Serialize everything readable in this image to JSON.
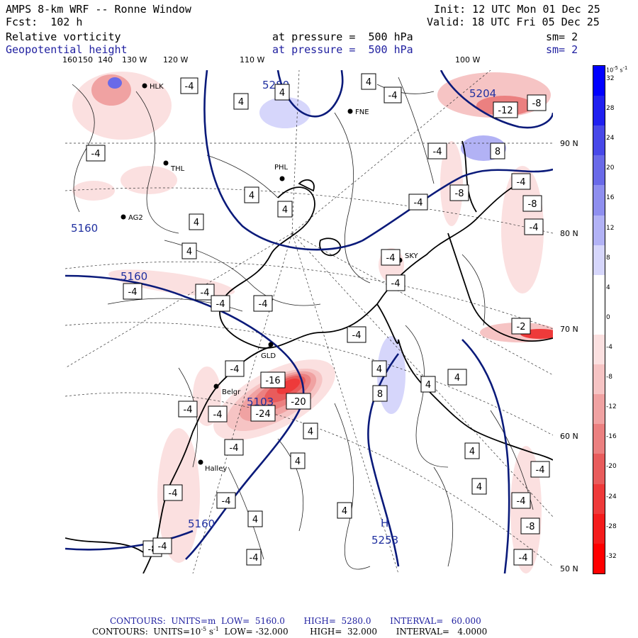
{
  "header": {
    "title": "AMPS 8-km WRF -- Ronne Window",
    "fcst": "Fcst:  102 h",
    "init": "Init: 12 UTC Mon 01 Dec 25",
    "valid": "Valid: 18 UTC Fri 05 Dec 25",
    "field1_name": "Relative vorticity",
    "field1_pressure": "at pressure =  500 hPa",
    "field1_sm": "sm= 2",
    "field2_name": "Geopotential height",
    "field2_pressure": "at pressure =  500 hPa",
    "field2_sm": "sm= 2"
  },
  "axes": {
    "longitudes": [
      "160",
      "150",
      "140",
      "130 W",
      "120 W",
      "110 W",
      "100 W"
    ],
    "latitudes": [
      "90 N",
      "80 N",
      "70 N",
      "60 N",
      "50 N"
    ]
  },
  "stations": [
    "HLK",
    "FNE",
    "THL",
    "PHL",
    "AG2",
    "SKY",
    "GLD",
    "Belgr",
    "Halley"
  ],
  "height_labels": [
    "5280",
    "5160",
    "5160",
    "5103",
    "5160",
    "5253",
    "5204"
  ],
  "high_marker": "H",
  "vorticity_labels": [
    "-4",
    "4",
    "-4",
    "4",
    "4",
    "-12",
    "-8",
    "-4",
    "8",
    "-4",
    "-8",
    "-4",
    "-8",
    "-4",
    "-4",
    "-4",
    "4",
    "4",
    "-4",
    "4",
    "4",
    "-4",
    "-4",
    "-4",
    "-4",
    "-4",
    "-16",
    "-20",
    "-24",
    "-4",
    "-4",
    "-4",
    "-4",
    "4",
    "8",
    "4",
    "4",
    "4",
    "4",
    "4",
    "4",
    "4",
    "-4",
    "-8",
    "-4",
    "-4",
    "-4",
    "-4",
    "4",
    "-8",
    "-4",
    "-4",
    "-2"
  ],
  "colorbar": {
    "unit": "10",
    "unit_exp": "-5",
    "unit_suffix": "s",
    "unit_suffix_exp": "-1",
    "ticks": [
      "32",
      "28",
      "24",
      "20",
      "16",
      "12",
      "8",
      "4",
      "0",
      "-4",
      "-8",
      "-12",
      "-16",
      "-20",
      "-24",
      "-28",
      "-32"
    ],
    "colors": [
      "#0000ff",
      "#2020f0",
      "#4848e8",
      "#6a6ae8",
      "#8f8fef",
      "#b2b2f5",
      "#d6d6fb",
      "#ffffff",
      "#ffffff",
      "#fbe0e0",
      "#f6c4c4",
      "#f0a2a2",
      "#eb8080",
      "#e85c5c",
      "#ee3a3a",
      "#f41c1c",
      "#ff0000"
    ]
  },
  "footer": {
    "line1": "CONTOURS:  UNITS=m  LOW=  5160.0       HIGH=  5280.0       INTERVAL=   60.000",
    "line2_a": "CONTOURS:  UNITS=10",
    "line2_exp1": "-5",
    "line2_b": " s",
    "line2_exp2": "-1",
    "line2_c": "  LOW= -32.000        HIGH=  32.000       INTERVAL=   4.0000"
  }
}
